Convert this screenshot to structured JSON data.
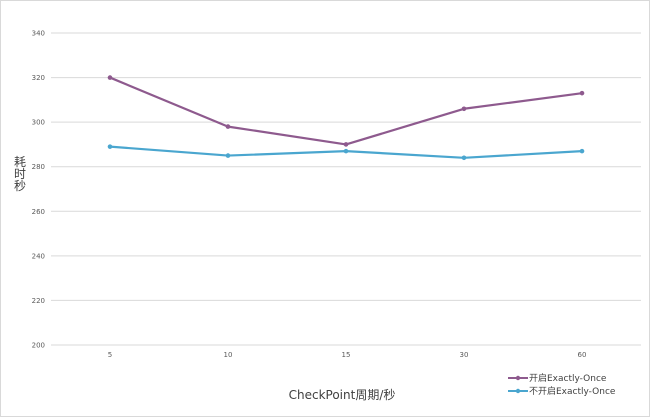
{
  "chart_data": {
    "type": "line",
    "categories": [
      "5",
      "10",
      "15",
      "30",
      "60"
    ],
    "series": [
      {
        "name": "开启Exactly-Once",
        "values": [
          320,
          298,
          290,
          306,
          313
        ],
        "color": "#8e5a8e"
      },
      {
        "name": "不开启Exactly-Once",
        "values": [
          289,
          285,
          287,
          284,
          287
        ],
        "color": "#4aa6cf"
      }
    ],
    "xlabel": "CheckPoint周期/秒",
    "ylabel": "耗时秒",
    "ylabel_chars": [
      "耗",
      "时",
      "秒"
    ],
    "yticks": [
      "200",
      "220",
      "240",
      "260",
      "280",
      "300",
      "320",
      "340"
    ],
    "ylim": [
      200,
      340
    ],
    "grid": true,
    "legend": "bottom-right"
  }
}
